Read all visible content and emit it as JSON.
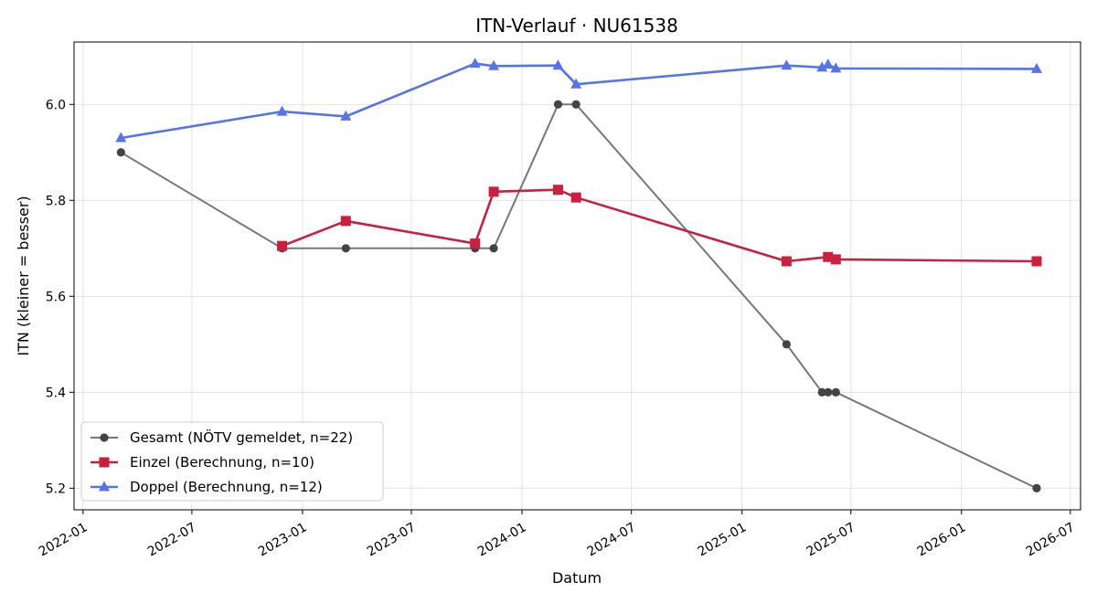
{
  "chart_data": {
    "type": "line",
    "title": "ITN-Verlauf · NU61538",
    "xlabel": "Datum",
    "ylabel": "ITN  (kleiner = besser)",
    "xlim": [
      "2021-12-17",
      "2026-07-18"
    ],
    "ylim": [
      5.155,
      6.13
    ],
    "x_ticks": [
      "2022-01",
      "2022-07",
      "2023-01",
      "2023-07",
      "2024-01",
      "2024-07",
      "2025-01",
      "2025-07",
      "2026-01",
      "2026-07"
    ],
    "y_ticks": [
      5.2,
      5.4,
      5.6,
      5.8,
      6.0
    ],
    "grid": true,
    "legend_position": "lower-left",
    "series": [
      {
        "name": "Gesamt (NÖTV gemeldet, n=22)",
        "color": "#777777",
        "marker_color": "#444444",
        "marker": "circle",
        "points": [
          {
            "x": "2022-03-05",
            "y": 5.9
          },
          {
            "x": "2022-11-28",
            "y": 5.7
          },
          {
            "x": "2023-03-14",
            "y": 5.7
          },
          {
            "x": "2023-10-15",
            "y": 5.7
          },
          {
            "x": "2023-11-15",
            "y": 5.7
          },
          {
            "x": "2024-03-01",
            "y": 6.0
          },
          {
            "x": "2024-03-31",
            "y": 6.0
          },
          {
            "x": "2025-03-16",
            "y": 5.5
          },
          {
            "x": "2025-05-14",
            "y": 5.4
          },
          {
            "x": "2025-05-24",
            "y": 5.4
          },
          {
            "x": "2025-06-06",
            "y": 5.4
          },
          {
            "x": "2026-05-06",
            "y": 5.2
          }
        ]
      },
      {
        "name": "Einzel (Berechnung, n=10)",
        "color": "#c8203e",
        "marker_color": "#c8203e",
        "marker": "square",
        "points": [
          {
            "x": "2022-11-28",
            "y": 5.705
          },
          {
            "x": "2023-03-14",
            "y": 5.757
          },
          {
            "x": "2023-10-15",
            "y": 5.71
          },
          {
            "x": "2023-11-15",
            "y": 5.818
          },
          {
            "x": "2024-03-01",
            "y": 5.822
          },
          {
            "x": "2024-03-31",
            "y": 5.806
          },
          {
            "x": "2025-03-16",
            "y": 5.673
          },
          {
            "x": "2025-05-24",
            "y": 5.682
          },
          {
            "x": "2025-06-06",
            "y": 5.677
          },
          {
            "x": "2026-05-06",
            "y": 5.673
          }
        ]
      },
      {
        "name": "Doppel (Berechnung, n=12)",
        "color": "#5474e8",
        "marker_color": "#5474e8",
        "marker": "triangle",
        "points": [
          {
            "x": "2022-03-05",
            "y": 5.93
          },
          {
            "x": "2022-11-28",
            "y": 5.985
          },
          {
            "x": "2023-03-14",
            "y": 5.975
          },
          {
            "x": "2023-10-15",
            "y": 6.085
          },
          {
            "x": "2023-11-15",
            "y": 6.08
          },
          {
            "x": "2024-03-01",
            "y": 6.081
          },
          {
            "x": "2024-03-31",
            "y": 6.042
          },
          {
            "x": "2025-03-16",
            "y": 6.081
          },
          {
            "x": "2025-05-14",
            "y": 6.077
          },
          {
            "x": "2025-05-24",
            "y": 6.083
          },
          {
            "x": "2025-06-06",
            "y": 6.075
          },
          {
            "x": "2026-05-06",
            "y": 6.074
          }
        ]
      }
    ]
  }
}
